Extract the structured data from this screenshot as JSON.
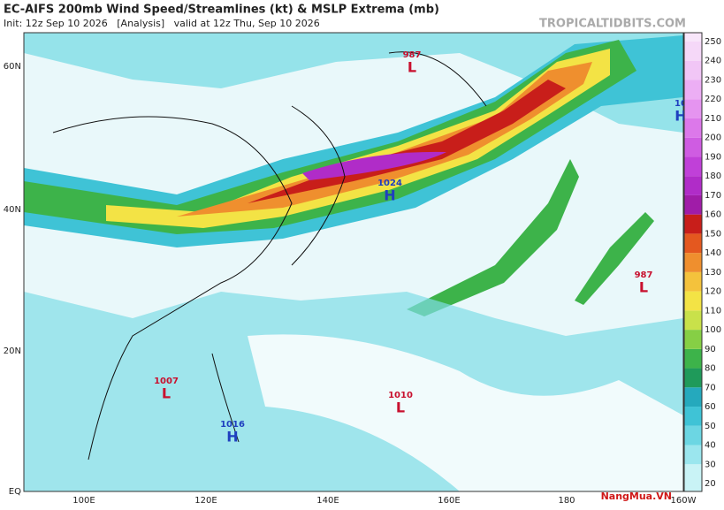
{
  "header": {
    "title": "EC-AIFS 200mb Wind Speed/Streamlines (kt) & MSLP Extrema (mb)",
    "subtitle": "Init: 12z Sep 10 2026   [Analysis]   valid at 12z Thu, Sep 10 2026",
    "site": "TROPICALTIDBITS.COM"
  },
  "map": {
    "lat_labels": [
      "60N",
      "40N",
      "20N",
      "EQ"
    ],
    "lon_labels": [
      "100E",
      "120E",
      "140E",
      "160E",
      "180",
      "160W"
    ],
    "centers": [
      {
        "pressure": 987,
        "kind": "L",
        "color": "#c8102e"
      },
      {
        "pressure": 1024,
        "kind": "H",
        "color": "#1f3fbf"
      },
      {
        "pressure": 987,
        "kind": "L",
        "color": "#c8102e"
      },
      {
        "pressure": 1007,
        "kind": "L",
        "color": "#c8102e"
      },
      {
        "pressure": 1010,
        "kind": "L",
        "color": "#c8102e"
      },
      {
        "pressure": 1016,
        "kind": "H",
        "color": "#1f3fbf"
      },
      {
        "pressure": 10,
        "kind": "H",
        "color": "#1f3fbf"
      }
    ]
  },
  "colorbar": {
    "labels": [
      20,
      30,
      40,
      50,
      60,
      70,
      80,
      90,
      100,
      110,
      120,
      130,
      140,
      150,
      160,
      170,
      180,
      190,
      200,
      210,
      220,
      230,
      240,
      250
    ],
    "colors": [
      "#c9f3f6",
      "#9be6ee",
      "#6cd6e3",
      "#3fc3d6",
      "#25a9bd",
      "#1f9a5a",
      "#3db34a",
      "#86cf45",
      "#c9e14a",
      "#f3e345",
      "#f4c23c",
      "#ef8f2e",
      "#e4581f",
      "#c81e1a",
      "#a01ca8",
      "#b02cc8",
      "#c040d8",
      "#cf5ce2",
      "#dc78ea",
      "#e594f0",
      "#ecaef4",
      "#f1c6f6",
      "#f5d8f8",
      "#f8e6fa"
    ]
  },
  "watermark": "NangMua.VN"
}
